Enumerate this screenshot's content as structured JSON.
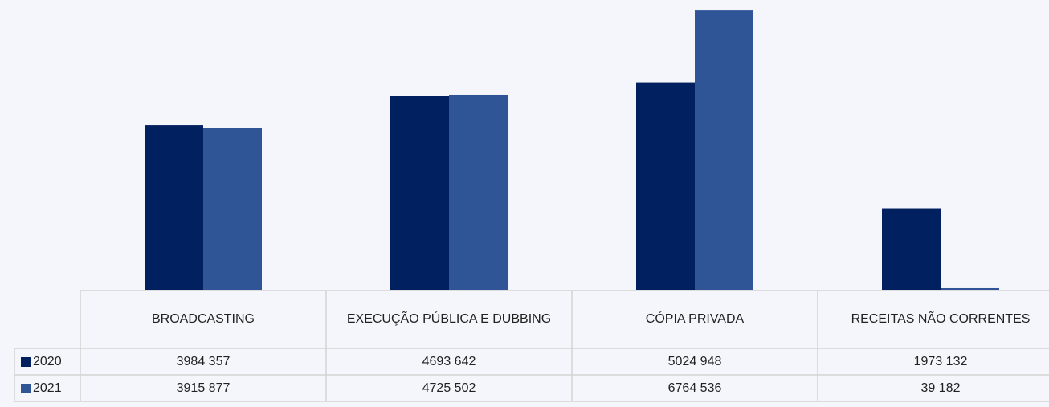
{
  "chart_data": {
    "type": "bar",
    "categories": [
      "BROADCASTING",
      "EXECUÇÃO PÚBLICA E DUBBING",
      "CÓPIA PRIVADA",
      "RECEITAS NÃO CORRENTES"
    ],
    "series": [
      {
        "name": "2020",
        "color": "#002060",
        "values": [
          3984357,
          4693642,
          5024948,
          1973132
        ],
        "value_labels": [
          "3984 357",
          "4693 642",
          "5024 948",
          "1973 132"
        ]
      },
      {
        "name": "2021",
        "color": "#2f5597",
        "values": [
          3915877,
          4725502,
          6764536,
          39182
        ],
        "value_labels": [
          "3915 877",
          "4725 502",
          "6764 536",
          "39 182"
        ]
      }
    ],
    "ylim": [
      0,
      7000000
    ]
  }
}
